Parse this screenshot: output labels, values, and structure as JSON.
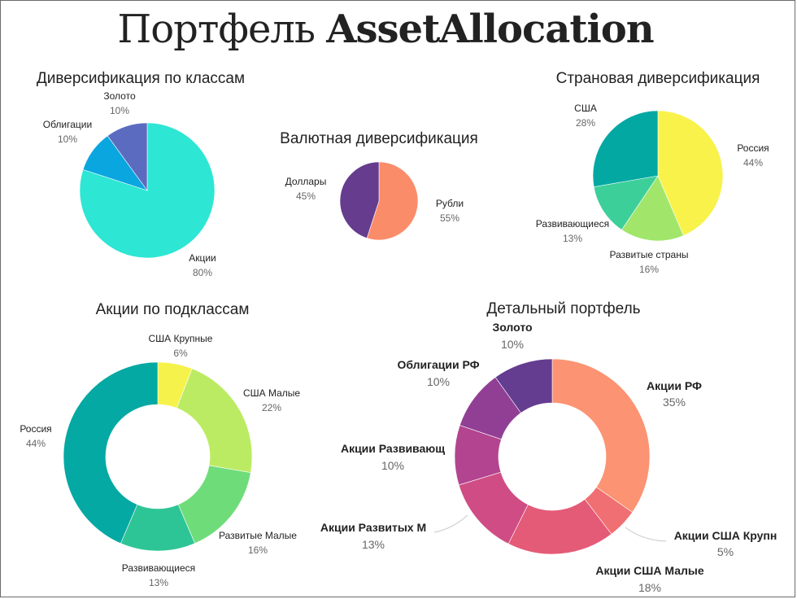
{
  "page": {
    "title_light": "Портфель ",
    "title_bold": "AssetAllocation"
  },
  "chart_data": [
    {
      "id": "classes",
      "type": "pie",
      "title": "Диверсификация по классам",
      "slices": [
        {
          "label": "Акции",
          "value": 80,
          "pct": "80%",
          "color": "#2de6d4"
        },
        {
          "label": "Облигации",
          "value": 10,
          "pct": "10%",
          "color": "#0aa6e0"
        },
        {
          "label": "Золото",
          "value": 10,
          "pct": "10%",
          "color": "#5b6cc0"
        }
      ]
    },
    {
      "id": "currency",
      "type": "pie",
      "title": "Валютная диверсификация",
      "slices": [
        {
          "label": "Рубли",
          "value": 55,
          "pct": "55%",
          "color": "#fb8c6a"
        },
        {
          "label": "Доллары",
          "value": 45,
          "pct": "45%",
          "color": "#663c8f"
        }
      ]
    },
    {
      "id": "country",
      "type": "pie",
      "title": "Страновая диверсификация",
      "slices": [
        {
          "label": "Россия",
          "value": 44,
          "pct": "44%",
          "color": "#f8f24b"
        },
        {
          "label": "Развитые страны",
          "value": 16,
          "pct": "16%",
          "color": "#a1e66a"
        },
        {
          "label": "Развивающиеся",
          "value": 13,
          "pct": "13%",
          "color": "#3ccf9a"
        },
        {
          "label": "США",
          "value": 28,
          "pct": "28%",
          "color": "#04a8a3"
        }
      ]
    },
    {
      "id": "subclasses",
      "type": "pie",
      "title": "Акции по подклассам",
      "slices": [
        {
          "label": "США Крупные",
          "value": 6,
          "pct": "6%",
          "color": "#f6f24c"
        },
        {
          "label": "США Малые",
          "value": 22,
          "pct": "22%",
          "color": "#bbeb62"
        },
        {
          "label": "Развитые Малые",
          "value": 16,
          "pct": "16%",
          "color": "#6fdc7a"
        },
        {
          "label": "Развивающиеся",
          "value": 13,
          "pct": "13%",
          "color": "#2ec596"
        },
        {
          "label": "Россия",
          "value": 44,
          "pct": "44%",
          "color": "#03a9a2"
        }
      ]
    },
    {
      "id": "detailed",
      "type": "pie",
      "title": "Детальный портфель",
      "slices": [
        {
          "label": "Акции РФ",
          "value": 35,
          "pct": "35%",
          "color": "#fc9373"
        },
        {
          "label": "Акции США Крупн",
          "value": 5,
          "pct": "5%",
          "color": "#f06f72"
        },
        {
          "label": "Акции США Малые",
          "value": 18,
          "pct": "18%",
          "color": "#e45b78"
        },
        {
          "label": "Акции Развитых М",
          "value": 13,
          "pct": "13%",
          "color": "#cf4d84"
        },
        {
          "label": "Акции Развивающ",
          "value": 10,
          "pct": "10%",
          "color": "#b3448f"
        },
        {
          "label": "Облигации РФ",
          "value": 10,
          "pct": "10%",
          "color": "#913f95"
        },
        {
          "label": "Золото",
          "value": 10,
          "pct": "10%",
          "color": "#643c90"
        }
      ]
    }
  ]
}
